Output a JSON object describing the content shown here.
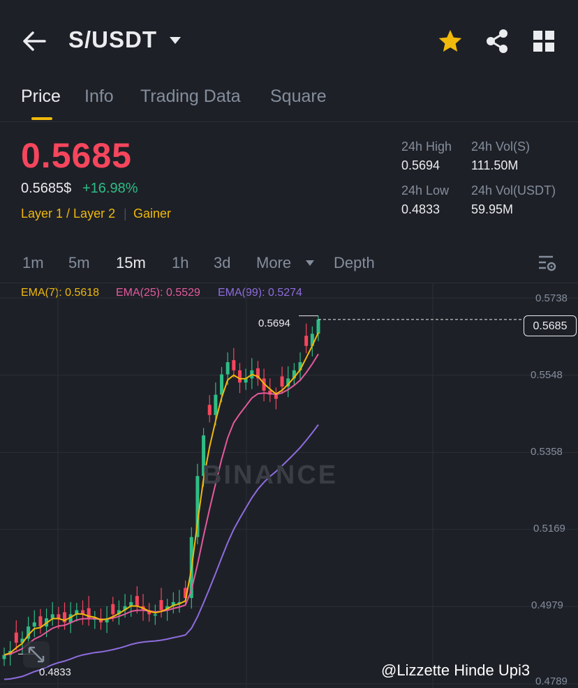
{
  "header": {
    "pair": "S/USDT",
    "icons": [
      "back-arrow-icon",
      "caret-down-icon",
      "star-icon",
      "share-icon",
      "grid-icon"
    ],
    "star_color": "#f0b90b"
  },
  "tabs": [
    "Price",
    "Info",
    "Trading Data",
    "Square"
  ],
  "ticker": {
    "last_price": "0.5685",
    "price_usd": "0.5685$",
    "change": "+16.98%",
    "tag_category": "Layer 1 / Layer 2",
    "tag_gainer": "Gainer",
    "high_label": "24h High",
    "high_value": "0.5694",
    "low_label": "24h Low",
    "low_value": "0.4833",
    "vol_base_label": "24h Vol(S)",
    "vol_base_value": "111.50M",
    "vol_quote_label": "24h Vol(USDT)",
    "vol_quote_value": "59.95M",
    "down_color": "#f6465d",
    "up_color": "#2ebd85"
  },
  "intervals": [
    "1m",
    "5m",
    "15m",
    "1h",
    "3d",
    "More",
    "Depth"
  ],
  "active_interval": "15m",
  "ema": {
    "ema7": "EMA(7): 0.5618",
    "ema25": "EMA(25): 0.5529",
    "ema99": "EMA(99): 0.5274",
    "ema7_color": "#f0b90b",
    "ema25_color": "#e45a9d",
    "ema99_color": "#8e6ddf"
  },
  "chart": {
    "axis_labels": [
      "0.5738",
      "0.5548",
      "0.5358",
      "0.5169",
      "0.4979",
      "0.4789"
    ],
    "current_price_tag": "0.5685",
    "high_marker": "0.5694",
    "low_marker": "0.4833",
    "watermark": "BINANCE"
  },
  "chart_data": {
    "type": "candlestick",
    "y_ticks": [
      0.5738,
      0.5548,
      0.5358,
      0.5169,
      0.4979,
      0.4789
    ],
    "ylim": [
      0.4789,
      0.5738
    ],
    "high": 0.5694,
    "low": 0.4833,
    "last": 0.5685,
    "close_approx": [
      0.486,
      0.487,
      0.489,
      0.49,
      0.493,
      0.494,
      0.493,
      0.495,
      0.496,
      0.495,
      0.494,
      0.496,
      0.497,
      0.496,
      0.495,
      0.495,
      0.494,
      0.495,
      0.496,
      0.497,
      0.498,
      0.499,
      0.498,
      0.497,
      0.496,
      0.496,
      0.497,
      0.498,
      0.499,
      0.499,
      0.5,
      0.515,
      0.53,
      0.54,
      0.545,
      0.55,
      0.555,
      0.558,
      0.556,
      0.553,
      0.554,
      0.556,
      0.554,
      0.551,
      0.55,
      0.549,
      0.552,
      0.554,
      0.556,
      0.558,
      0.562,
      0.565,
      0.5685
    ]
  },
  "user_mark": "@Lizzette Hinde Upi3"
}
